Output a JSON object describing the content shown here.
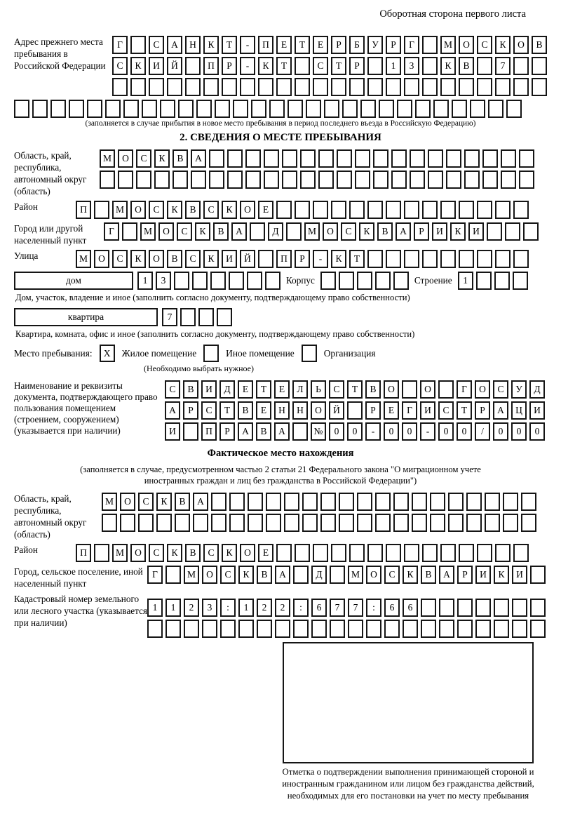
{
  "header_note": "Оборотная сторона первого листа",
  "prev_address": {
    "label": "Адрес прежнего места пребывания в Российской Федерации",
    "rows": [
      {
        "cells": "Г САНКТ-ПЕТЕРБУРГ МОСКОВ",
        "count": 24
      },
      {
        "cells": "СКИЙ ПР-КТ СТР 13 КВ 7",
        "count": 24
      },
      {
        "cells": "",
        "count": 24
      }
    ],
    "full_row": {
      "cells": "",
      "count": 28
    },
    "note": "(заполняется в случае прибытия в новое место пребывания в период последнего въезда в Российскую Федерацию)"
  },
  "section2": {
    "title": "2. СВЕДЕНИЯ О МЕСТЕ ПРЕБЫВАНИЯ",
    "oblast": {
      "label": "Область, край, республика, автономный округ (область)",
      "rows": [
        {
          "cells": "МОСКВА",
          "count": 24
        },
        {
          "cells": "",
          "count": 24
        }
      ]
    },
    "raion": {
      "label": "Район",
      "row": {
        "cells": "П МОСКВСКОЕ",
        "count": 25
      }
    },
    "gorod": {
      "label": "Город или другой населенный пункт",
      "row": {
        "cells": "Г МОСКВА Д МОСКВАРИКИ",
        "count": 24
      }
    },
    "ulitsa": {
      "label": "Улица",
      "row": {
        "cells": "МОСКОВСКИЙ ПР-КТ",
        "count": 25
      }
    },
    "dom": {
      "label": "дом",
      "house": {
        "cells": "13",
        "count": 8
      },
      "korpus_label": "Корпус",
      "korpus": {
        "cells": "",
        "count": 5
      },
      "stroenie_label": "Строение",
      "stroenie": {
        "cells": "1",
        "count": 4
      }
    },
    "dom_note": "Дом, участок, владение и иное (заполнить согласно документу, подтверждающему право собственности)",
    "kvartira": {
      "label": "квартира",
      "row": {
        "cells": "7",
        "count": 4
      }
    },
    "kvartira_note": "Квартира, комната, офис и иное (заполнить согласно документу, подтверждающему право собственности)",
    "stay": {
      "label": "Место пребывания:",
      "options": [
        {
          "mark": "X",
          "label": "Жилое помещение"
        },
        {
          "mark": "",
          "label": "Иное помещение"
        },
        {
          "mark": "",
          "label": "Организация"
        }
      ],
      "note": "(Необходимо выбрать нужное)"
    },
    "doc": {
      "label": "Наименование и реквизиты документа, подтверждающего право пользования помещением (строением, сооружением) (указывается при наличии)",
      "rows": [
        {
          "cells": "СВИДЕТЕЛЬСТВО О ГОСУД",
          "count": 21
        },
        {
          "cells": "АРСТВЕННОЙ РЕГИСТРАЦИ",
          "count": 21
        },
        {
          "cells": "И ПРАВА №00-00-00/000",
          "count": 21
        }
      ]
    }
  },
  "factual": {
    "title": "Фактическое место нахождения",
    "note": "(заполняется в случае, предусмотренном частью 2 статьи 21 Федерального закона \"О миграционном учете иностранных граждан и лиц без гражданства в Российской Федерации\")",
    "oblast": {
      "label": "Область, край, республика, автономный округ (область)",
      "rows": [
        {
          "cells": "МОСКВА",
          "count": 24
        },
        {
          "cells": "",
          "count": 24
        }
      ]
    },
    "raion": {
      "label": "Район",
      "row": {
        "cells": "П МОСКВСКОЕ",
        "count": 25
      }
    },
    "gorod": {
      "label": "Город, сельское поселение, иной населенный пункт",
      "row": {
        "cells": "Г МОСКВА Д МОСКВАРИКИ",
        "count": 22
      }
    },
    "kadastr": {
      "label": "Кадастровый номер земельного или лесного участка (указывается при наличии)",
      "rows": [
        {
          "cells": "1123:122:677:66",
          "count": 22
        },
        {
          "cells": "",
          "count": 22
        }
      ]
    },
    "stamp_caption": "Отметка о подтверждении выполнения принимающей стороной и иностранным гражданином или лицом без гражданства действий, необходимых для его постановки на учет по месту пребывания"
  }
}
